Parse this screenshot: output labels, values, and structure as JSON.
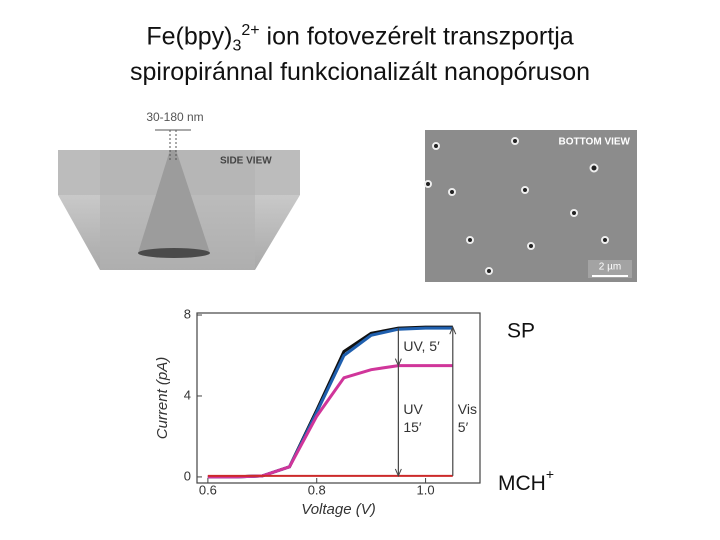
{
  "title": {
    "text1": "Fe(bpy)",
    "sub": "3",
    "sup": "2+",
    "text2": " ion fotovezérelt transzportja",
    "line2": "spiropiránnal funkcionalizált nanopóruson"
  },
  "side_view": {
    "size": "30-180 nm",
    "label": "SIDE VIEW"
  },
  "bottom_view": {
    "label": "BOTTOM VIEW",
    "scale": "2 µm"
  },
  "state_top": "SP",
  "state_bottom": {
    "text": "MCH",
    "sup": "+"
  },
  "chart_data": {
    "type": "line",
    "xlabel": "Voltage (V)",
    "ylabel": "Current (pA)",
    "x": [
      0.6,
      0.65,
      0.7,
      0.75,
      0.8,
      0.85,
      0.9,
      0.95,
      1.0,
      1.05
    ],
    "series": [
      {
        "color": "#111111",
        "values": [
          0,
          0,
          0.05,
          0.5,
          3.3,
          6.2,
          7.1,
          7.35,
          7.4,
          7.4
        ]
      },
      {
        "color": "#1f5fae",
        "values": [
          0,
          0,
          0.05,
          0.5,
          3.2,
          6.0,
          7.0,
          7.3,
          7.35,
          7.35
        ]
      },
      {
        "color": "#d0359a",
        "values": [
          0,
          0,
          0.05,
          0.5,
          3.0,
          4.9,
          5.3,
          5.5,
          5.5,
          5.5
        ]
      },
      {
        "color": "#cc2a2a",
        "values": [
          0.05,
          0.05,
          0.05,
          0.05,
          0.05,
          0.05,
          0.05,
          0.05,
          0.05,
          0.05
        ]
      }
    ],
    "annotations": [
      "UV, 5′",
      "UV",
      "15′",
      "Vis",
      "5′"
    ],
    "xlim": [
      0.58,
      1.1
    ],
    "ylim": [
      -0.3,
      8.1
    ],
    "xticks": [
      0.6,
      0.8,
      {
        "value": 1,
        "label": "1.0"
      }
    ],
    "yticks": [
      0,
      4,
      8
    ]
  }
}
